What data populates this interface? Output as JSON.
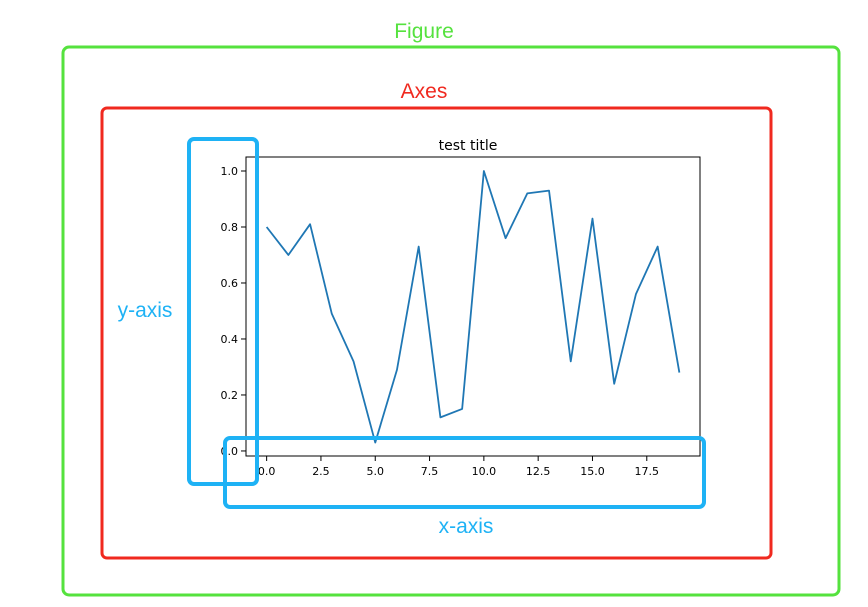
{
  "annotations": {
    "figure_label": "Figure",
    "axes_label": "Axes",
    "yaxis_label": "y-axis",
    "xaxis_label": "x-axis"
  },
  "colors": {
    "figure_box": "#55e23e",
    "axes_box": "#f0291f",
    "axis_box": "#1eb2f5",
    "line": "#1f77b4",
    "frame": "#000000",
    "text": "#000000"
  },
  "chart_data": {
    "type": "line",
    "title": "test title",
    "xlabel": "",
    "ylabel": "",
    "x": [
      0,
      1,
      2,
      3,
      4,
      5,
      6,
      7,
      8,
      9,
      10,
      11,
      12,
      13,
      14,
      15,
      16,
      17,
      18,
      19
    ],
    "series": [
      {
        "values": [
          0.8,
          0.7,
          0.81,
          0.49,
          0.32,
          0.03,
          0.29,
          0.73,
          0.12,
          0.15,
          1.0,
          0.76,
          0.92,
          0.93,
          0.32,
          0.83,
          0.24,
          0.56,
          0.73,
          0.28
        ]
      }
    ],
    "xlim": [
      -0.95,
      19.95
    ],
    "ylim": [
      -0.018,
      1.05
    ],
    "xticks": [
      0.0,
      2.5,
      5.0,
      7.5,
      10.0,
      12.5,
      15.0,
      17.5
    ],
    "xtick_labels": [
      "0.0",
      "2.5",
      "5.0",
      "7.5",
      "10.0",
      "12.5",
      "15.0",
      "17.5"
    ],
    "yticks": [
      0.0,
      0.2,
      0.4,
      0.6,
      0.8,
      1.0
    ],
    "ytick_labels": [
      "0.0",
      "0.2",
      "0.4",
      "0.6",
      "0.8",
      "1.0"
    ],
    "grid": false,
    "legend": "none"
  }
}
